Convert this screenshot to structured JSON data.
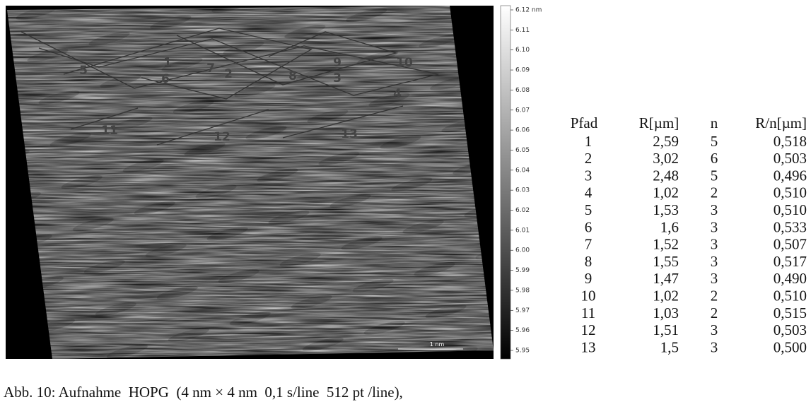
{
  "image": {
    "path_labels": [
      "1",
      "2",
      "3",
      "4",
      "5",
      "6",
      "7",
      "8",
      "9",
      "10",
      "11",
      "12",
      "13"
    ],
    "scale_bar": "1 nm"
  },
  "colorbar": {
    "ticks": [
      "6.12 nm",
      "6.11",
      "6.10",
      "6.09",
      "6.08",
      "6.07",
      "6.06",
      "6.05",
      "6.04",
      "6.03",
      "6.02",
      "6.01",
      "6.00",
      "5.99",
      "5.98",
      "5.97",
      "5.96",
      "5.95"
    ]
  },
  "table": {
    "header": [
      "Pfad",
      "R[µm]",
      "n",
      "R/n[µm]"
    ],
    "rows": [
      [
        "1",
        "2,59",
        "5",
        "0,518"
      ],
      [
        "2",
        "3,02",
        "6",
        "0,503"
      ],
      [
        "3",
        "2,48",
        "5",
        "0,496"
      ],
      [
        "4",
        "1,02",
        "2",
        "0,510"
      ],
      [
        "5",
        "1,53",
        "3",
        "0,510"
      ],
      [
        "6",
        "1,6",
        "3",
        "0,533"
      ],
      [
        "7",
        "1,52",
        "3",
        "0,507"
      ],
      [
        "8",
        "1,55",
        "3",
        "0,517"
      ],
      [
        "9",
        "1,47",
        "3",
        "0,490"
      ],
      [
        "10",
        "1,02",
        "2",
        "0,510"
      ],
      [
        "11",
        "1,03",
        "2",
        "0,515"
      ],
      [
        "12",
        "1,51",
        "3",
        "0,503"
      ],
      [
        "13",
        "1,5",
        "3",
        "0,500"
      ]
    ]
  },
  "caption": "Abb. 10: Aufnahme  HOPG  (4 nm × 4 nm  0,1 s/line  512 pt /line),"
}
